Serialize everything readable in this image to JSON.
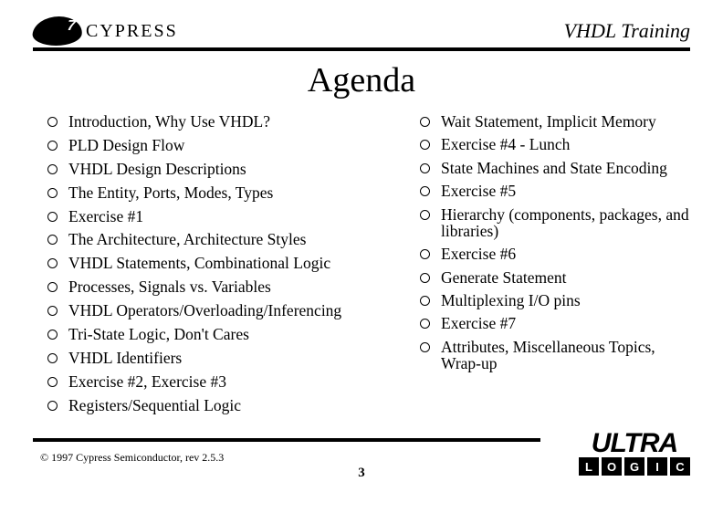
{
  "header": {
    "logo_text": "CYPRESS",
    "title": "VHDL Training"
  },
  "slide_title": "Agenda",
  "left_items": [
    "Introduction, Why Use VHDL?",
    "PLD Design Flow",
    "VHDL Design Descriptions",
    "The Entity, Ports, Modes, Types",
    "Exercise #1",
    "The Architecture,  Architecture Styles",
    "VHDL Statements, Combinational Logic",
    "Processes, Signals vs. Variables",
    "VHDL Operators/Overloading/Inferencing",
    "Tri-State Logic, Don't Cares",
    "VHDL Identifiers",
    "Exercise #2, Exercise #3",
    "Registers/Sequential Logic"
  ],
  "right_items": [
    "Wait Statement, Implicit Memory",
    "Exercise #4 - Lunch",
    "State Machines and State Encoding",
    "Exercise #5",
    "Hierarchy (components, packages, and libraries)",
    "Exercise #6",
    "Generate Statement",
    "Multiplexing I/O pins",
    "Exercise #7",
    "Attributes, Miscellaneous Topics, Wrap-up"
  ],
  "footer": {
    "copyright": "© 1997 Cypress Semiconductor, rev 2.5.3",
    "page_number": "3",
    "ultra_word": "ULTRA",
    "ultra_letters": [
      "L",
      "O",
      "G",
      "I",
      "C"
    ]
  },
  "colors": {
    "background": "#ffffff",
    "text": "#000000",
    "rule": "#000000"
  }
}
